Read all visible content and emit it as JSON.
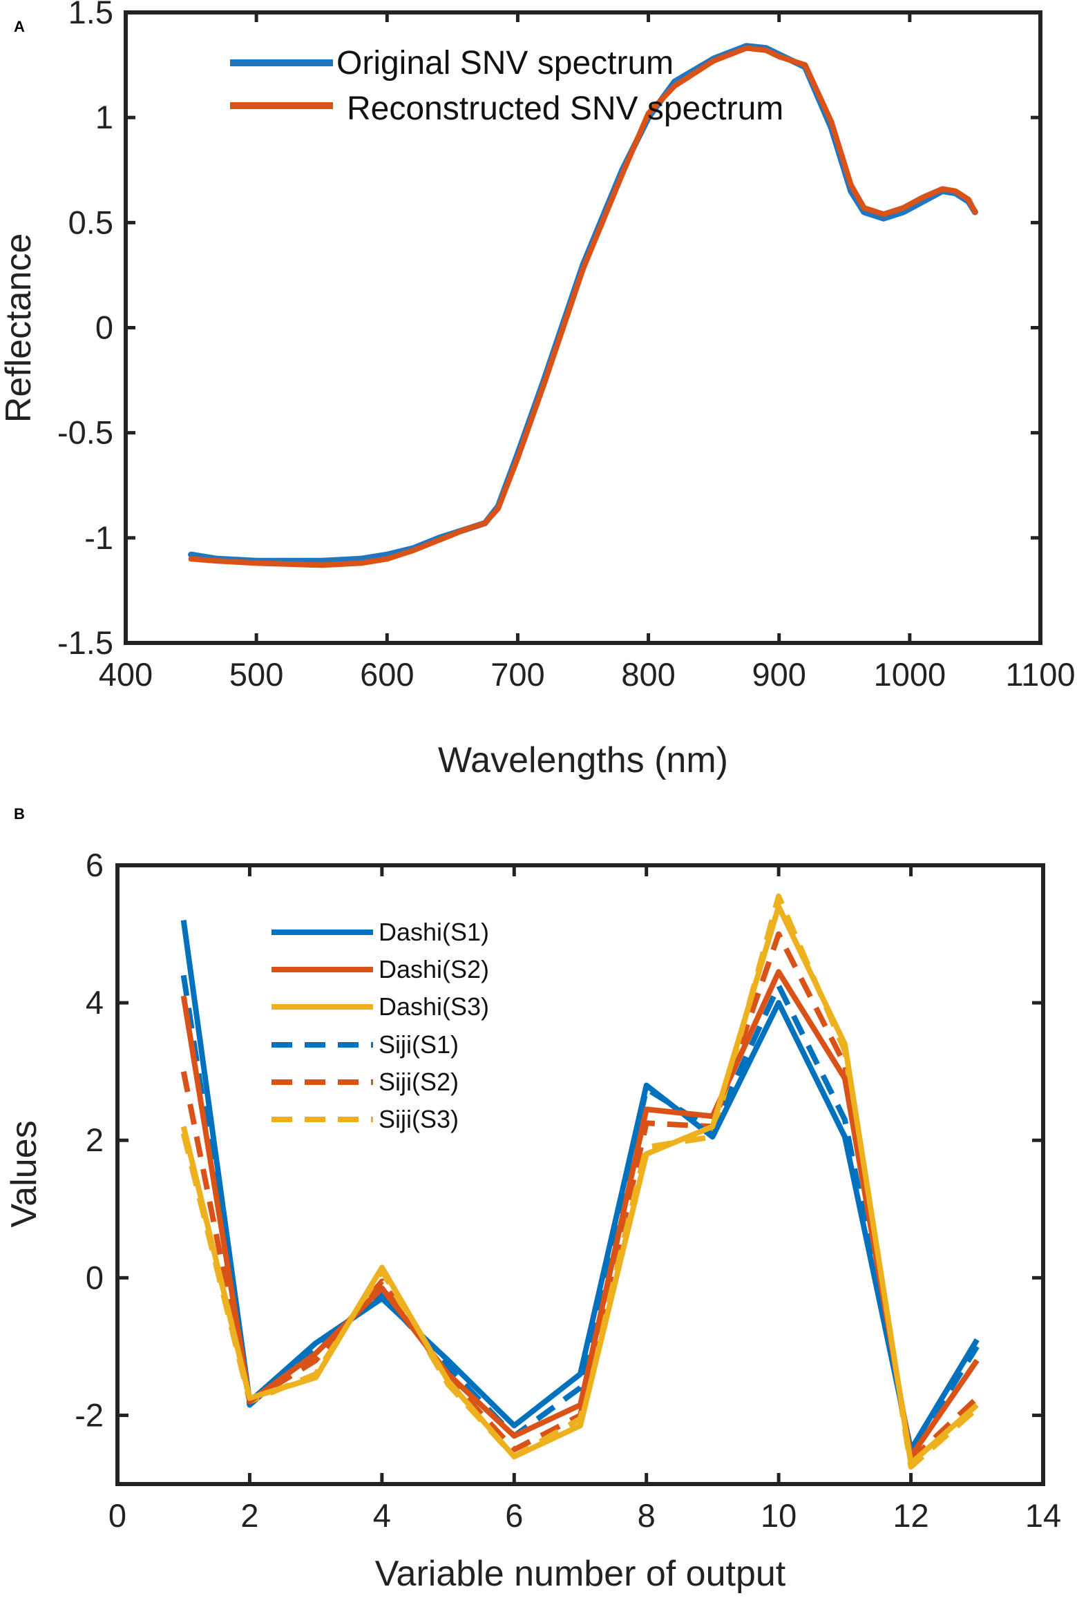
{
  "panel_a": {
    "label": "A",
    "colors": {
      "original": "#1f77c4",
      "reconstructed": "#d95319"
    }
  },
  "panel_b": {
    "label": "B",
    "colors": {
      "S1": "#0072bd",
      "S2": "#d95319",
      "S3": "#edb120"
    }
  },
  "chart_data": [
    {
      "type": "line",
      "title": "",
      "xlabel": "Wavelengths (nm)",
      "ylabel": "Reflectance",
      "xlim": [
        400,
        1100
      ],
      "ylim": [
        -1.5,
        1.5
      ],
      "xticks": [
        400,
        500,
        600,
        700,
        800,
        900,
        1000,
        1100
      ],
      "yticks": [
        1.5,
        1,
        0.5,
        0,
        -0.5,
        -1,
        -1.5
      ],
      "xtick_labels": [
        "400",
        "500",
        "600",
        "700",
        "800",
        "900",
        "1000",
        "1100"
      ],
      "ytick_labels": [
        "1.5",
        "1",
        "0.5",
        "0",
        "-0.5",
        "-1",
        "-1.5"
      ],
      "legend_position": "top-left",
      "series": [
        {
          "name": "Original SNV spectrum",
          "style": "solid",
          "x": [
            450,
            470,
            500,
            550,
            580,
            600,
            620,
            640,
            660,
            675,
            685,
            700,
            720,
            750,
            780,
            800,
            820,
            850,
            875,
            890,
            900,
            920,
            940,
            955,
            965,
            980,
            995,
            1010,
            1025,
            1035,
            1045,
            1050
          ],
          "y": [
            -1.08,
            -1.1,
            -1.11,
            -1.11,
            -1.1,
            -1.08,
            -1.05,
            -1.0,
            -0.96,
            -0.93,
            -0.85,
            -0.6,
            -0.25,
            0.3,
            0.75,
            1.0,
            1.17,
            1.28,
            1.34,
            1.33,
            1.3,
            1.24,
            0.95,
            0.65,
            0.55,
            0.52,
            0.55,
            0.6,
            0.65,
            0.64,
            0.6,
            0.55
          ]
        },
        {
          "name": "Reconstructed SNV spectrum",
          "style": "solid",
          "x": [
            450,
            470,
            500,
            550,
            580,
            600,
            620,
            640,
            660,
            675,
            685,
            700,
            720,
            750,
            780,
            800,
            820,
            850,
            875,
            890,
            900,
            920,
            940,
            955,
            965,
            980,
            995,
            1010,
            1025,
            1035,
            1045,
            1050
          ],
          "y": [
            -1.1,
            -1.11,
            -1.12,
            -1.13,
            -1.12,
            -1.1,
            -1.06,
            -1.01,
            -0.96,
            -0.93,
            -0.86,
            -0.62,
            -0.27,
            0.28,
            0.73,
            1.02,
            1.15,
            1.27,
            1.33,
            1.32,
            1.29,
            1.25,
            0.98,
            0.68,
            0.57,
            0.54,
            0.57,
            0.62,
            0.66,
            0.65,
            0.61,
            0.55
          ]
        }
      ]
    },
    {
      "type": "line",
      "title": "",
      "xlabel": "Variable number of output",
      "ylabel": "Values",
      "xlim": [
        0,
        14
      ],
      "ylim": [
        -3,
        6
      ],
      "xticks": [
        0,
        2,
        4,
        6,
        8,
        10,
        12,
        14
      ],
      "yticks": [
        6,
        4,
        2,
        0,
        -2
      ],
      "xtick_labels": [
        "0",
        "2",
        "4",
        "6",
        "8",
        "10",
        "12",
        "14"
      ],
      "ytick_labels": [
        "6",
        "4",
        "2",
        "0",
        "-2"
      ],
      "legend_position": "top-left",
      "x": [
        1,
        2,
        3,
        4,
        5,
        6,
        7,
        8,
        9,
        10,
        11,
        12,
        13
      ],
      "series": [
        {
          "name": "Dashi(S1)",
          "style": "solid",
          "color_key": "S1",
          "values": [
            5.2,
            -1.8,
            -0.95,
            -0.3,
            -1.2,
            -2.15,
            -1.4,
            2.8,
            2.05,
            4.0,
            2.05,
            -2.5,
            -0.9
          ]
        },
        {
          "name": "Dashi(S2)",
          "style": "solid",
          "color_key": "S2",
          "values": [
            4.1,
            -1.8,
            -1.1,
            -0.15,
            -1.4,
            -2.3,
            -1.85,
            2.45,
            2.35,
            4.45,
            2.9,
            -2.6,
            -1.2
          ]
        },
        {
          "name": "Dashi(S3)",
          "style": "solid",
          "color_key": "S3",
          "values": [
            2.2,
            -1.75,
            -1.45,
            0.15,
            -1.5,
            -2.6,
            -2.15,
            1.8,
            2.2,
            5.4,
            3.4,
            -2.7,
            -1.85
          ]
        },
        {
          "name": "Siji(S1)",
          "style": "dashed",
          "color_key": "S1",
          "values": [
            4.4,
            -1.85,
            -1.0,
            -0.25,
            -1.3,
            -2.3,
            -1.6,
            2.75,
            2.15,
            4.25,
            2.3,
            -2.55,
            -1.0
          ]
        },
        {
          "name": "Siji(S2)",
          "style": "dashed",
          "color_key": "S2",
          "values": [
            3.0,
            -1.8,
            -1.2,
            -0.05,
            -1.45,
            -2.5,
            -2.0,
            2.25,
            2.2,
            5.0,
            3.1,
            -2.65,
            -1.75
          ]
        },
        {
          "name": "Siji(S3)",
          "style": "dashed",
          "color_key": "S3",
          "values": [
            2.1,
            -1.8,
            -1.4,
            0.1,
            -1.55,
            -2.6,
            -2.05,
            1.9,
            2.05,
            5.55,
            3.3,
            -2.75,
            -1.9
          ]
        }
      ]
    }
  ]
}
